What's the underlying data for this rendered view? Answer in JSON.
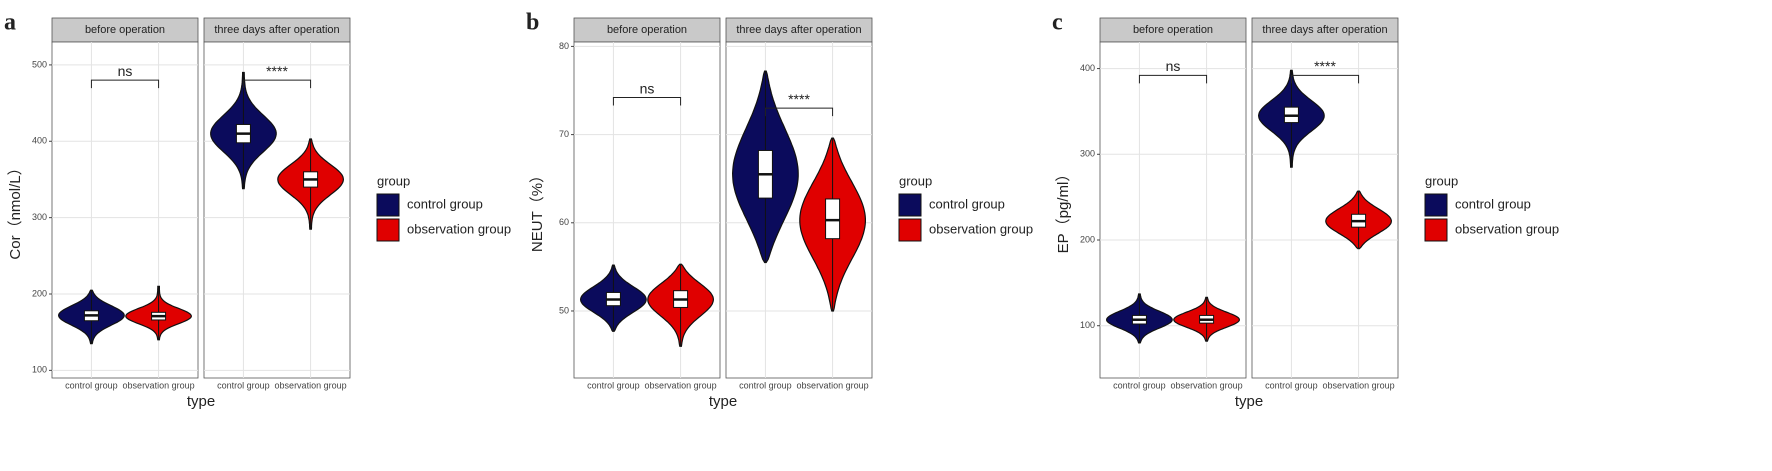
{
  "chart_data": [
    {
      "type": "violin",
      "panel_label": "a",
      "ylabel": "Cor（nmol/L）",
      "xlabel": "type",
      "facets": [
        "before operation",
        "three days after operation"
      ],
      "categories": [
        "control group",
        "observation group"
      ],
      "legend_title": "group",
      "grid": true,
      "ylim": [
        90,
        530
      ],
      "yticks": [
        100,
        200,
        300,
        400,
        500
      ],
      "series": [
        {
          "name": "control group",
          "color": "#0b0b5c",
          "values": [
            {
              "min": 135,
              "q1": 165,
              "median": 172,
              "q3": 178,
              "max": 205
            },
            {
              "min": 338,
              "q1": 398,
              "median": 410,
              "q3": 422,
              "max": 490
            }
          ]
        },
        {
          "name": "observation group",
          "color": "#e00000",
          "values": [
            {
              "min": 140,
              "q1": 166,
              "median": 171,
              "q3": 176,
              "max": 210
            },
            {
              "min": 285,
              "q1": 340,
              "median": 350,
              "q3": 360,
              "max": 403
            }
          ]
        }
      ],
      "annotations": [
        "ns",
        "****"
      ],
      "annotation_y": [
        480,
        480
      ]
    },
    {
      "type": "violin",
      "panel_label": "b",
      "ylabel": "NEUT（%）",
      "xlabel": "type",
      "facets": [
        "before operation",
        "three days after operation"
      ],
      "categories": [
        "control group",
        "observation group"
      ],
      "legend_title": "group",
      "grid": true,
      "ylim": [
        42.4,
        80.5
      ],
      "yticks": [
        50,
        60,
        70,
        80
      ],
      "series": [
        {
          "name": "control group",
          "color": "#0b0b5c",
          "values": [
            {
              "min": 47.7,
              "q1": 50.6,
              "median": 51.3,
              "q3": 52.1,
              "max": 55.2
            },
            {
              "min": 55.5,
              "q1": 62.8,
              "median": 65.5,
              "q3": 68.2,
              "max": 77.2
            }
          ]
        },
        {
          "name": "observation group",
          "color": "#e00000",
          "values": [
            {
              "min": 46,
              "q1": 50.4,
              "median": 51.3,
              "q3": 52.3,
              "max": 55.3
            },
            {
              "min": 50,
              "q1": 58.2,
              "median": 60.3,
              "q3": 62.7,
              "max": 69.6
            }
          ]
        }
      ],
      "annotations": [
        "ns",
        "****"
      ],
      "annotation_y": [
        74.2,
        73
      ]
    },
    {
      "type": "violin",
      "panel_label": "c",
      "ylabel": "EP（pg/ml）",
      "xlabel": "type",
      "facets": [
        "before operation",
        "three days after operation"
      ],
      "categories": [
        "control group",
        "observation group"
      ],
      "legend_title": "group",
      "grid": true,
      "ylim": [
        39,
        431
      ],
      "yticks": [
        100,
        200,
        300,
        400
      ],
      "series": [
        {
          "name": "control group",
          "color": "#0b0b5c",
          "values": [
            {
              "min": 80,
              "q1": 102,
              "median": 107,
              "q3": 112,
              "max": 137
            },
            {
              "min": 285,
              "q1": 337,
              "median": 345,
              "q3": 355,
              "max": 398
            }
          ]
        },
        {
          "name": "observation group",
          "color": "#e00000",
          "values": [
            {
              "min": 82,
              "q1": 103,
              "median": 107,
              "q3": 112,
              "max": 133
            },
            {
              "min": 190,
              "q1": 215,
              "median": 222,
              "q3": 230,
              "max": 257
            }
          ]
        }
      ],
      "annotations": [
        "ns",
        "****"
      ],
      "annotation_y": [
        392,
        392
      ]
    }
  ]
}
